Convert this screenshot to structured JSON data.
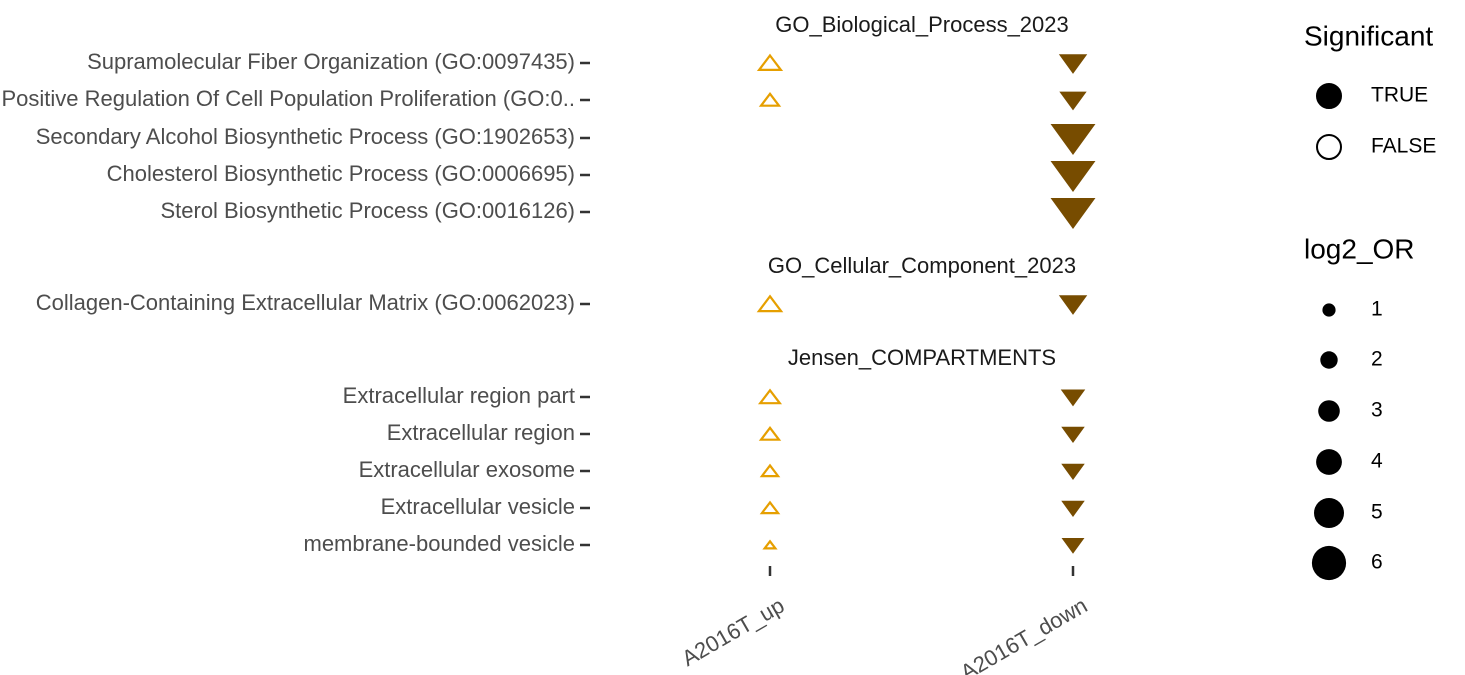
{
  "chart_data": {
    "type": "scatter",
    "x_categories": [
      "A2016T_up",
      "A2016T_down"
    ],
    "facets": [
      {
        "title": "GO_Biological_Process_2023",
        "terms": [
          "Supramolecular Fiber Organization (GO:0097435)",
          "Positive Regulation Of Cell Population Proliferation (GO:0..",
          "Secondary Alcohol Biosynthetic Process (GO:1902653)",
          "Cholesterol Biosynthetic Process (GO:0006695)",
          "Sterol Biosynthetic Process (GO:0016126)"
        ]
      },
      {
        "title": "GO_Cellular_Component_2023",
        "terms": [
          "Collagen-Containing Extracellular Matrix (GO:0062023)"
        ]
      },
      {
        "title": "Jensen_COMPARTMENTS",
        "terms": [
          "Extracellular region part",
          "Extracellular region",
          "Extracellular exosome",
          "Extracellular vesicle",
          "membrane-bounded vesicle"
        ]
      }
    ],
    "points": [
      {
        "term": "Supramolecular Fiber Organization (GO:0097435)",
        "x": "A2016T_up",
        "log2_OR": 2.5,
        "significant": false
      },
      {
        "term": "Supramolecular Fiber Organization (GO:0097435)",
        "x": "A2016T_down",
        "log2_OR": 3.0,
        "significant": true
      },
      {
        "term": "Positive Regulation Of Cell Population Proliferation (GO:0..",
        "x": "A2016T_up",
        "log2_OR": 1.8,
        "significant": false
      },
      {
        "term": "Positive Regulation Of Cell Population Proliferation (GO:0..",
        "x": "A2016T_down",
        "log2_OR": 2.8,
        "significant": true
      },
      {
        "term": "Secondary Alcohol Biosynthetic Process (GO:1902653)",
        "x": "A2016T_down",
        "log2_OR": 6.0,
        "significant": true
      },
      {
        "term": "Cholesterol Biosynthetic Process (GO:0006695)",
        "x": "A2016T_down",
        "log2_OR": 6.0,
        "significant": true
      },
      {
        "term": "Sterol Biosynthetic Process (GO:0016126)",
        "x": "A2016T_down",
        "log2_OR": 6.0,
        "significant": true
      },
      {
        "term": "Collagen-Containing Extracellular Matrix (GO:0062023)",
        "x": "A2016T_up",
        "log2_OR": 2.6,
        "significant": false
      },
      {
        "term": "Collagen-Containing Extracellular Matrix (GO:0062023)",
        "x": "A2016T_down",
        "log2_OR": 3.0,
        "significant": true
      },
      {
        "term": "Extracellular region part",
        "x": "A2016T_up",
        "log2_OR": 2.1,
        "significant": false
      },
      {
        "term": "Extracellular region part",
        "x": "A2016T_down",
        "log2_OR": 2.3,
        "significant": true
      },
      {
        "term": "Extracellular region",
        "x": "A2016T_up",
        "log2_OR": 1.8,
        "significant": false
      },
      {
        "term": "Extracellular region",
        "x": "A2016T_down",
        "log2_OR": 2.1,
        "significant": true
      },
      {
        "term": "Extracellular exosome",
        "x": "A2016T_up",
        "log2_OR": 1.5,
        "significant": false
      },
      {
        "term": "Extracellular exosome",
        "x": "A2016T_down",
        "log2_OR": 2.1,
        "significant": true
      },
      {
        "term": "Extracellular vesicle",
        "x": "A2016T_up",
        "log2_OR": 1.5,
        "significant": false
      },
      {
        "term": "Extracellular vesicle",
        "x": "A2016T_down",
        "log2_OR": 2.1,
        "significant": true
      },
      {
        "term": "membrane-bounded vesicle",
        "x": "A2016T_up",
        "log2_OR": 0.5,
        "significant": false
      },
      {
        "term": "membrane-bounded vesicle",
        "x": "A2016T_down",
        "log2_OR": 2.0,
        "significant": true
      }
    ],
    "legend": {
      "significant": {
        "title": "Significant",
        "levels": [
          "TRUE",
          "FALSE"
        ]
      },
      "log2_OR": {
        "title": "log2_OR",
        "levels": [
          "1",
          "2",
          "3",
          "4",
          "5",
          "6"
        ]
      },
      "placement": "right"
    },
    "colors": {
      "up": "#E69F00",
      "down": "#774C00"
    },
    "grid": false
  }
}
